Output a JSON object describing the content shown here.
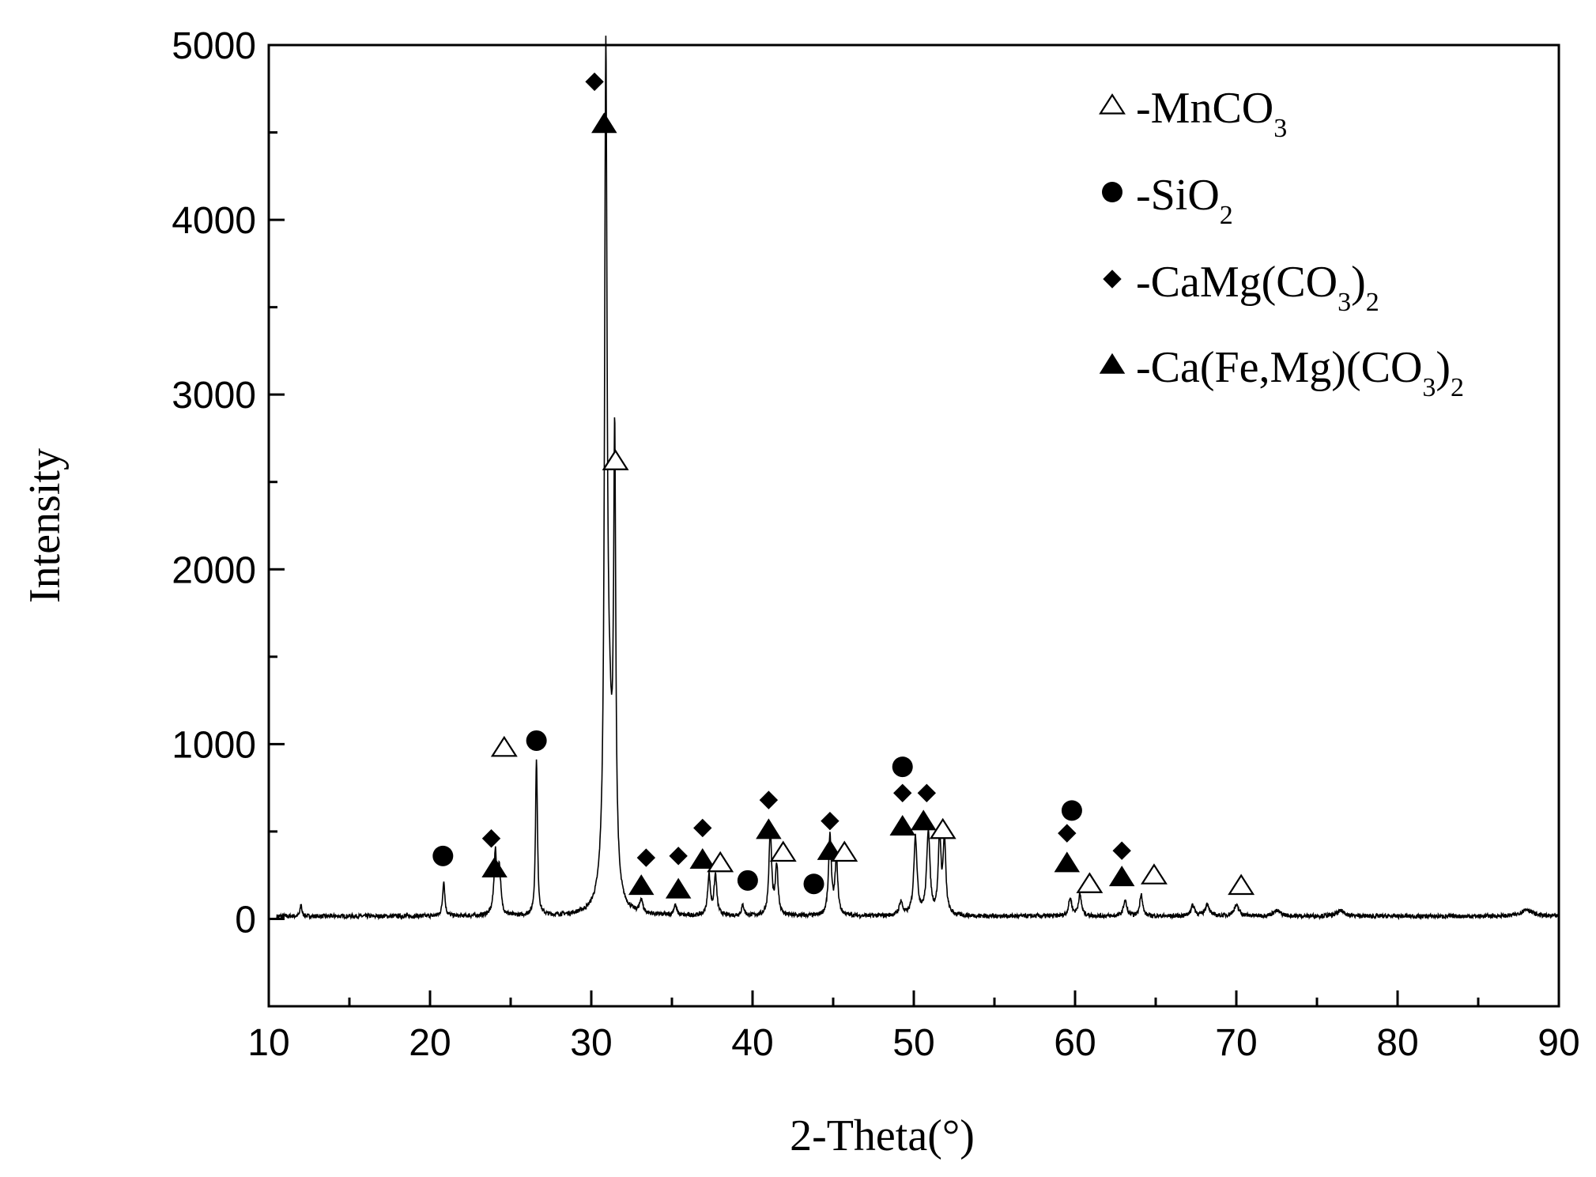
{
  "chart_data": {
    "type": "line",
    "title": "",
    "xlabel": "2-Theta(°)",
    "ylabel": "Intensity",
    "xlim": [
      10,
      90
    ],
    "ylim": [
      -500,
      5000
    ],
    "xticks": [
      10,
      20,
      30,
      40,
      50,
      60,
      70,
      80,
      90
    ],
    "yticks": [
      0,
      1000,
      2000,
      3000,
      4000,
      5000
    ],
    "grid": false,
    "legend_position": "top-right",
    "legend": [
      {
        "marker": "open-triangle",
        "label": "-MnCO",
        "sub": "3",
        "tail": ""
      },
      {
        "marker": "circle",
        "label": "-SiO",
        "sub": "2",
        "tail": ""
      },
      {
        "marker": "diamond",
        "label": "-CaMg(CO",
        "sub": "3",
        "tail": ")",
        "sub2": "2"
      },
      {
        "marker": "triangle",
        "label": "-Ca(Fe,Mg)(CO",
        "sub": "3",
        "tail": ")",
        "sub2": "2"
      }
    ],
    "baseline": 15,
    "noise": 12,
    "peaks": [
      {
        "x": 12.0,
        "h": 70,
        "w": 0.06
      },
      {
        "x": 20.85,
        "h": 200,
        "w": 0.08
      },
      {
        "x": 24.05,
        "h": 350,
        "w": 0.1
      },
      {
        "x": 24.3,
        "h": 260,
        "w": 0.1
      },
      {
        "x": 26.6,
        "h": 900,
        "w": 0.07
      },
      {
        "x": 30.9,
        "h": 4450,
        "w": 0.09
      },
      {
        "x": 31.1,
        "h": 900,
        "w": 0.25
      },
      {
        "x": 31.45,
        "h": 2450,
        "w": 0.08
      },
      {
        "x": 33.1,
        "h": 80,
        "w": 0.1
      },
      {
        "x": 35.2,
        "h": 60,
        "w": 0.1
      },
      {
        "x": 37.3,
        "h": 230,
        "w": 0.1
      },
      {
        "x": 37.7,
        "h": 230,
        "w": 0.1
      },
      {
        "x": 39.4,
        "h": 60,
        "w": 0.1
      },
      {
        "x": 41.1,
        "h": 480,
        "w": 0.1
      },
      {
        "x": 41.5,
        "h": 280,
        "w": 0.1
      },
      {
        "x": 44.8,
        "h": 460,
        "w": 0.1
      },
      {
        "x": 45.2,
        "h": 320,
        "w": 0.1
      },
      {
        "x": 49.2,
        "h": 80,
        "w": 0.12
      },
      {
        "x": 50.1,
        "h": 450,
        "w": 0.12
      },
      {
        "x": 50.9,
        "h": 480,
        "w": 0.12
      },
      {
        "x": 51.6,
        "h": 440,
        "w": 0.1
      },
      {
        "x": 51.9,
        "h": 420,
        "w": 0.1
      },
      {
        "x": 59.7,
        "h": 100,
        "w": 0.12
      },
      {
        "x": 60.3,
        "h": 120,
        "w": 0.12
      },
      {
        "x": 63.1,
        "h": 90,
        "w": 0.12
      },
      {
        "x": 64.1,
        "h": 130,
        "w": 0.1
      },
      {
        "x": 67.3,
        "h": 60,
        "w": 0.15
      },
      {
        "x": 68.2,
        "h": 70,
        "w": 0.15
      },
      {
        "x": 70.0,
        "h": 60,
        "w": 0.2
      },
      {
        "x": 72.5,
        "h": 30,
        "w": 0.3
      },
      {
        "x": 76.5,
        "h": 30,
        "w": 0.3
      },
      {
        "x": 88.0,
        "h": 40,
        "w": 0.4
      }
    ],
    "markers": [
      {
        "type": "circle",
        "x": 20.8,
        "y": 360
      },
      {
        "type": "diamond",
        "x": 23.8,
        "y": 460
      },
      {
        "type": "triangle",
        "x": 24.0,
        "y": 290
      },
      {
        "type": "open-triangle",
        "x": 24.6,
        "y": 980
      },
      {
        "type": "circle",
        "x": 26.6,
        "y": 1020
      },
      {
        "type": "diamond",
        "x": 30.2,
        "y": 4790
      },
      {
        "type": "triangle",
        "x": 30.8,
        "y": 4550
      },
      {
        "type": "open-triangle",
        "x": 31.5,
        "y": 2620
      },
      {
        "type": "triangle",
        "x": 33.1,
        "y": 190
      },
      {
        "type": "diamond",
        "x": 33.4,
        "y": 350
      },
      {
        "type": "triangle",
        "x": 35.4,
        "y": 170
      },
      {
        "type": "diamond",
        "x": 35.4,
        "y": 360
      },
      {
        "type": "diamond",
        "x": 36.9,
        "y": 520
      },
      {
        "type": "triangle",
        "x": 36.9,
        "y": 340
      },
      {
        "type": "open-triangle",
        "x": 38.0,
        "y": 320
      },
      {
        "type": "circle",
        "x": 39.7,
        "y": 220
      },
      {
        "type": "diamond",
        "x": 41.0,
        "y": 680
      },
      {
        "type": "triangle",
        "x": 41.0,
        "y": 510
      },
      {
        "type": "open-triangle",
        "x": 41.9,
        "y": 380
      },
      {
        "type": "circle",
        "x": 43.8,
        "y": 200
      },
      {
        "type": "diamond",
        "x": 44.8,
        "y": 560
      },
      {
        "type": "triangle",
        "x": 44.8,
        "y": 390
      },
      {
        "type": "open-triangle",
        "x": 45.7,
        "y": 380
      },
      {
        "type": "circle",
        "x": 49.3,
        "y": 870
      },
      {
        "type": "diamond",
        "x": 49.3,
        "y": 720
      },
      {
        "type": "triangle",
        "x": 49.3,
        "y": 530
      },
      {
        "type": "diamond",
        "x": 50.8,
        "y": 720
      },
      {
        "type": "triangle",
        "x": 50.6,
        "y": 560
      },
      {
        "type": "open-triangle",
        "x": 51.8,
        "y": 510
      },
      {
        "type": "diamond",
        "x": 59.5,
        "y": 490
      },
      {
        "type": "triangle",
        "x": 59.5,
        "y": 320
      },
      {
        "type": "circle",
        "x": 59.8,
        "y": 620
      },
      {
        "type": "open-triangle",
        "x": 60.9,
        "y": 200
      },
      {
        "type": "diamond",
        "x": 62.9,
        "y": 390
      },
      {
        "type": "triangle",
        "x": 62.9,
        "y": 240
      },
      {
        "type": "open-triangle",
        "x": 64.9,
        "y": 250
      },
      {
        "type": "open-triangle",
        "x": 70.3,
        "y": 190
      }
    ]
  }
}
